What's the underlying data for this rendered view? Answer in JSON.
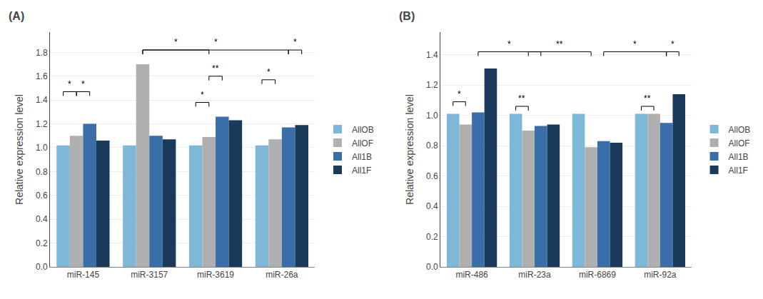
{
  "chart_data": [
    {
      "type": "bar",
      "title": "(A)",
      "categories": [
        "miR-145",
        "miR-3157",
        "miR-3619",
        "miR-26a"
      ],
      "series": [
        {
          "name": "AllOB",
          "color": "#7DB8D8",
          "values": [
            1.02,
            1.02,
            1.02,
            1.02
          ]
        },
        {
          "name": "AllOF",
          "color": "#B0B0B0",
          "values": [
            1.1,
            1.7,
            1.09,
            1.07
          ]
        },
        {
          "name": "All1B",
          "color": "#3A6EA8",
          "values": [
            1.2,
            1.1,
            1.26,
            1.17
          ]
        },
        {
          "name": "All1F",
          "color": "#1A3A5C",
          "values": [
            1.06,
            1.07,
            1.23,
            1.19
          ]
        }
      ],
      "y_label": "Relative expression level",
      "ylim": [
        0,
        1.97
      ],
      "yticks": [
        {
          "value": 0,
          "label": "0.0"
        },
        0.2,
        0.4,
        0.6,
        0.8,
        {
          "value": 1.0,
          "label": "1.0"
        },
        1.2,
        1.4,
        1.6,
        1.8
      ],
      "grid": true,
      "legend": "right",
      "annotations": [
        {
          "from": {
            "category": "miR-145",
            "series": "AllOB"
          },
          "to": {
            "category": "miR-145",
            "series": "AllOF"
          },
          "y": 1.47,
          "text": "*"
        },
        {
          "from": {
            "category": "miR-145",
            "series": "AllOF"
          },
          "to": {
            "category": "miR-145",
            "series": "All1B"
          },
          "y": 1.47,
          "text": "*"
        },
        {
          "from": {
            "category": "miR-3619",
            "series": "AllOB"
          },
          "to": {
            "category": "miR-3619",
            "series": "AllOF"
          },
          "y": 1.38,
          "text": "*"
        },
        {
          "from": {
            "category": "miR-3619",
            "series": "AllOF"
          },
          "to": {
            "category": "miR-3619",
            "series": "All1B"
          },
          "y": 1.6,
          "text": "**"
        },
        {
          "from": {
            "category": "miR-26a",
            "series": "AllOB"
          },
          "to": {
            "category": "miR-26a",
            "series": "AllOF"
          },
          "y": 1.57,
          "text": "*"
        },
        {
          "from": {
            "category": "miR-3157",
            "series": "AllOF"
          },
          "to": {
            "category": "miR-3619",
            "series": "AllOF"
          },
          "y": 1.82,
          "text": "*"
        },
        {
          "from": {
            "category": "miR-3157",
            "series": "AllOF"
          },
          "to": {
            "category": "miR-26a",
            "series": "All1B"
          },
          "y": 1.82,
          "text": "*"
        },
        {
          "from": {
            "category": "miR-26a",
            "series": "All1B"
          },
          "to": {
            "category": "miR-26a",
            "series": "All1F"
          },
          "y": 1.82,
          "text": "*"
        }
      ]
    },
    {
      "type": "bar",
      "title": "(B)",
      "categories": [
        "miR-486",
        "miR-23a",
        "miR-6869",
        "miR-92a"
      ],
      "series": [
        {
          "name": "AllOB",
          "color": "#7DB8D8",
          "values": [
            1.01,
            1.01,
            1.01,
            1.01
          ]
        },
        {
          "name": "AllOF",
          "color": "#B0B0B0",
          "values": [
            0.94,
            0.9,
            0.79,
            1.01
          ]
        },
        {
          "name": "All1B",
          "color": "#3A6EA8",
          "values": [
            1.02,
            0.93,
            0.83,
            0.95
          ]
        },
        {
          "name": "All1F",
          "color": "#1A3A5C",
          "values": [
            1.31,
            0.94,
            0.82,
            1.14
          ]
        }
      ],
      "y_label": "Relative expression level",
      "ylim": [
        0,
        1.55
      ],
      "yticks": [
        {
          "value": 0,
          "label": "0.0"
        },
        0.2,
        0.4,
        0.6,
        0.8,
        {
          "value": 1.0,
          "label": "1.0"
        },
        1.2,
        1.4
      ],
      "grid": true,
      "legend": "right",
      "annotations": [
        {
          "from": {
            "category": "miR-486",
            "series": "AllOB"
          },
          "to": {
            "category": "miR-486",
            "series": "AllOF"
          },
          "y": 1.09,
          "text": "*"
        },
        {
          "from": {
            "category": "miR-23a",
            "series": "AllOB"
          },
          "to": {
            "category": "miR-23a",
            "series": "AllOF"
          },
          "y": 1.06,
          "text": "**"
        },
        {
          "from": {
            "category": "miR-92a",
            "series": "AllOB"
          },
          "to": {
            "category": "miR-92a",
            "series": "AllOF"
          },
          "y": 1.06,
          "text": "**"
        },
        {
          "from": {
            "category": "miR-486",
            "series": "All1B"
          },
          "to": {
            "category": "miR-23a",
            "series": "All1B"
          },
          "y": 1.42,
          "text": "*"
        },
        {
          "from": {
            "category": "miR-23a",
            "series": "AllOF"
          },
          "to": {
            "category": "miR-6869",
            "series": "AllOF"
          },
          "y": 1.42,
          "text": "**"
        },
        {
          "from": {
            "category": "miR-6869",
            "series": "All1B"
          },
          "to": {
            "category": "miR-92a",
            "series": "All1B"
          },
          "y": 1.42,
          "text": "*"
        },
        {
          "from": {
            "category": "miR-92a",
            "series": "All1B"
          },
          "to": {
            "category": "miR-92a",
            "series": "All1F"
          },
          "y": 1.42,
          "text": "*"
        }
      ]
    }
  ]
}
